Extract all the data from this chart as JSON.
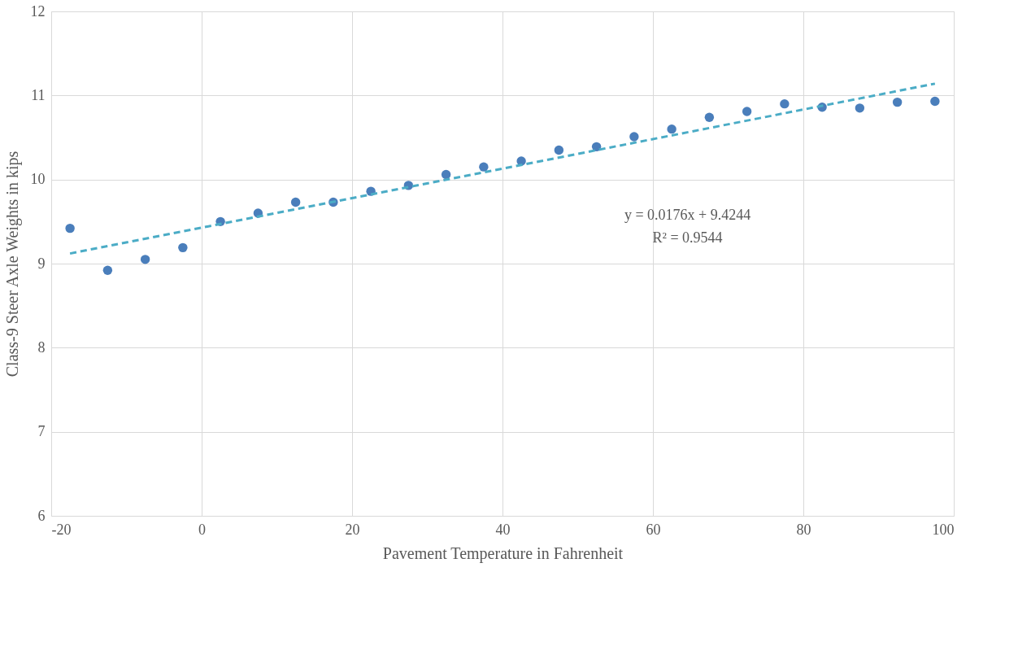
{
  "chart_data": {
    "type": "scatter",
    "xlabel": "Pavement Temperature in Fahrenheit",
    "ylabel": "Class-9 Steer Axle Weights in kips",
    "x": [
      -17.5,
      -12.5,
      -7.5,
      -2.5,
      2.5,
      7.5,
      12.5,
      17.5,
      22.5,
      27.5,
      32.5,
      37.5,
      42.5,
      47.5,
      52.5,
      57.5,
      62.5,
      67.5,
      72.5,
      77.5,
      82.5,
      87.5,
      92.5,
      97.5
    ],
    "series": [
      {
        "type": "scatter",
        "color": "#4a7ebb",
        "marker": "circle",
        "values": [
          9.42,
          8.92,
          9.05,
          9.19,
          9.5,
          9.6,
          9.73,
          9.73,
          9.86,
          9.93,
          10.06,
          10.15,
          10.22,
          10.35,
          10.39,
          10.51,
          10.6,
          10.74,
          10.81,
          10.9,
          10.86,
          10.85,
          10.92,
          10.93
        ]
      },
      {
        "type": "line",
        "color": "#4bacc6",
        "line_style": "dashed",
        "x": [
          -17.5,
          97.5
        ],
        "values": [
          9.12,
          11.14
        ]
      }
    ],
    "xlim": [
      -20,
      100
    ],
    "xticks": [
      -20,
      0,
      20,
      40,
      60,
      80,
      100
    ],
    "ylim": [
      6,
      12
    ],
    "yticks": [
      6,
      7,
      8,
      9,
      10,
      11,
      12
    ],
    "grid": true,
    "annotations": [
      "y = 0.0176x + 9.4244",
      "R² = 0.9544"
    ]
  }
}
